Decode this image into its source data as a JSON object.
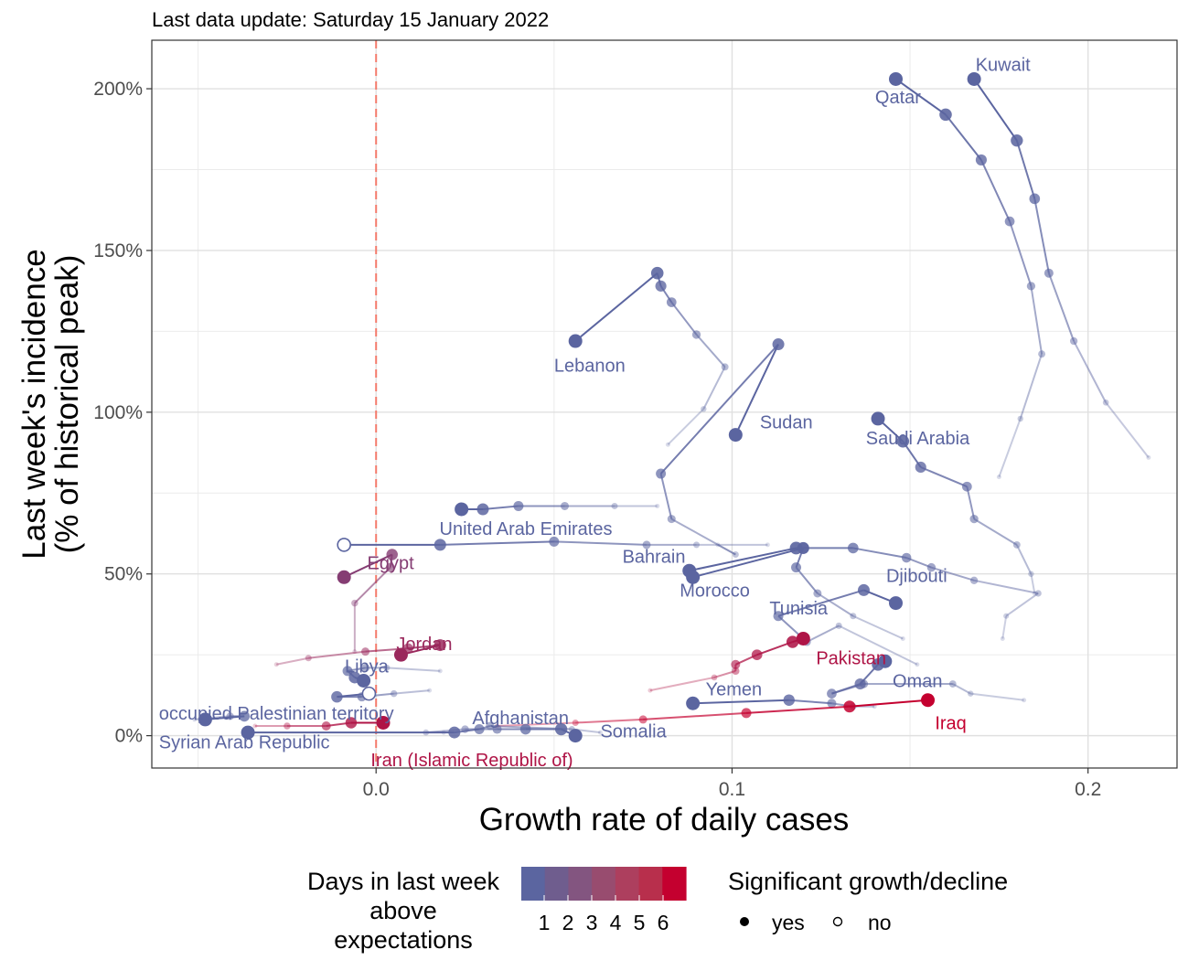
{
  "subtitle": "Last data update: Saturday 15 January 2022",
  "chart_data": {
    "type": "scatter",
    "xlabel": "Growth rate of daily cases",
    "ylabel_lines": [
      "Last week's incidence",
      "(% of historical peak)"
    ],
    "xlim": [
      -0.063,
      0.225
    ],
    "ylim": [
      -10,
      215
    ],
    "x_ticks": [
      {
        "v": 0,
        "label": "0.0"
      },
      {
        "v": 0.1,
        "label": "0.1"
      },
      {
        "v": 0.2,
        "label": "0.2"
      }
    ],
    "y_ticks": [
      {
        "v": 0,
        "label": "0%"
      },
      {
        "v": 50,
        "label": "50%"
      },
      {
        "v": 100,
        "label": "100%"
      },
      {
        "v": 150,
        "label": "150%"
      },
      {
        "v": 200,
        "label": "200%"
      }
    ],
    "grid": true,
    "reference_line_x": 0,
    "colors": {
      "low": "#5b65a0",
      "high": "#c4002f",
      "refline": "#f47a6b",
      "scale": [
        "#5b65a0",
        "#6f5d8e",
        "#835580",
        "#984c6f",
        "#ad3f5e",
        "#b82f4c",
        "#c4002f"
      ]
    },
    "legend": {
      "placement": "bottom",
      "color_title_lines": [
        "Days in last week",
        "above",
        "expectations"
      ],
      "color_labels": [
        "1",
        "2",
        "3",
        "4",
        "5",
        "6"
      ],
      "shape_title": "Significant growth/decline",
      "shape_labels": [
        "yes",
        "no"
      ]
    },
    "series": [
      {
        "name": "Kuwait",
        "level": 1,
        "significant": true,
        "points": [
          [
            0.217,
            86
          ],
          [
            0.205,
            103
          ],
          [
            0.196,
            122
          ],
          [
            0.189,
            143
          ],
          [
            0.185,
            166
          ],
          [
            0.18,
            184
          ],
          [
            0.168,
            203
          ]
        ],
        "label": {
          "x": 0.1684,
          "y": 207.5
        }
      },
      {
        "name": "Qatar",
        "level": 1,
        "significant": true,
        "points": [
          [
            0.175,
            80
          ],
          [
            0.181,
            98
          ],
          [
            0.187,
            118
          ],
          [
            0.184,
            139
          ],
          [
            0.178,
            159
          ],
          [
            0.17,
            178
          ],
          [
            0.16,
            192
          ],
          [
            0.146,
            203
          ]
        ],
        "label": {
          "x": 0.1402,
          "y": 197.5
        }
      },
      {
        "name": "Lebanon",
        "level": 1,
        "significant": true,
        "points": [
          [
            0.082,
            90
          ],
          [
            0.092,
            101
          ],
          [
            0.098,
            114
          ],
          [
            0.09,
            124
          ],
          [
            0.083,
            134
          ],
          [
            0.08,
            139
          ],
          [
            0.079,
            143
          ],
          [
            0.056,
            122
          ]
        ],
        "label": {
          "x": 0.05,
          "y": 114.5
        }
      },
      {
        "name": "Sudan",
        "level": 1,
        "significant": true,
        "points": [
          [
            0.096,
            59
          ],
          [
            0.101,
            56
          ],
          [
            0.083,
            67
          ],
          [
            0.08,
            81
          ],
          [
            0.113,
            121
          ],
          [
            0.101,
            93
          ]
        ],
        "label": {
          "x": 0.1078,
          "y": 97
        }
      },
      {
        "name": "Saudi Arabia",
        "level": 1,
        "significant": true,
        "points": [
          [
            0.185,
            44
          ],
          [
            0.184,
            50
          ],
          [
            0.18,
            59
          ],
          [
            0.168,
            67
          ],
          [
            0.166,
            77
          ],
          [
            0.153,
            83
          ],
          [
            0.148,
            91
          ],
          [
            0.141,
            98
          ]
        ],
        "label": {
          "x": 0.1376,
          "y": 92
        }
      },
      {
        "name": "United Arab Emirates",
        "level": 1,
        "significant": false,
        "points": [
          [
            0.11,
            59
          ],
          [
            0.09,
            59
          ],
          [
            0.076,
            59
          ],
          [
            0.05,
            60
          ],
          [
            0.018,
            59
          ],
          [
            -0.009,
            59
          ]
        ],
        "label": {
          "x": 0.0178,
          "y": 64
        }
      },
      {
        "name": "Bahrain",
        "level": 1,
        "significant": true,
        "points": [
          [
            0.079,
            71
          ],
          [
            0.067,
            71
          ],
          [
            0.053,
            71
          ],
          [
            0.04,
            71
          ],
          [
            0.03,
            70
          ],
          [
            0.024,
            70
          ]
        ],
        "label": {
          "x": 0.0692,
          "y": 55.5
        }
      },
      {
        "name": "Morocco",
        "level": 1,
        "significant": true,
        "points": [
          [
            0.176,
            30
          ],
          [
            0.177,
            37
          ],
          [
            0.186,
            44
          ],
          [
            0.168,
            48
          ],
          [
            0.156,
            52
          ],
          [
            0.149,
            55
          ],
          [
            0.134,
            58
          ],
          [
            0.12,
            58
          ],
          [
            0.118,
            58
          ],
          [
            0.088,
            51
          ]
        ],
        "label": {
          "x": 0.0853,
          "y": 45
        }
      },
      {
        "name": "Djibouti",
        "level": 1,
        "significant": true,
        "points": [
          [
            0.148,
            30
          ],
          [
            0.134,
            37
          ],
          [
            0.124,
            44
          ],
          [
            0.118,
            52
          ],
          [
            0.12,
            58
          ],
          [
            0.089,
            49
          ]
        ],
        "label": {
          "x": 0.1433,
          "y": 49.5
        }
      },
      {
        "name": "Tunisia",
        "level": 1,
        "significant": true,
        "points": [
          [
            0.152,
            22
          ],
          [
            0.13,
            34
          ],
          [
            0.121,
            29
          ],
          [
            0.113,
            37
          ],
          [
            0.137,
            45
          ],
          [
            0.146,
            41
          ]
        ],
        "label": {
          "x": 0.1105,
          "y": 39.5
        }
      },
      {
        "name": "Egypt",
        "level": 3,
        "significant": true,
        "points": [
          [
            -0.006,
            26
          ],
          [
            -0.006,
            41
          ],
          [
            0.004,
            52
          ],
          [
            0.0045,
            56
          ],
          [
            -0.009,
            49
          ]
        ],
        "label": {
          "x": -0.0025,
          "y": 53.5
        }
      },
      {
        "name": "Jordan",
        "level": 4,
        "significant": true,
        "points": [
          [
            -0.028,
            22
          ],
          [
            -0.019,
            24
          ],
          [
            -0.003,
            26
          ],
          [
            0.009,
            27
          ],
          [
            0.018,
            28
          ],
          [
            0.007,
            25
          ]
        ],
        "label": {
          "x": 0.0057,
          "y": 28.5
        }
      },
      {
        "name": "Libya",
        "level": 1,
        "significant": true,
        "points": [
          [
            0.018,
            20
          ],
          [
            0.003,
            21
          ],
          [
            -0.003,
            21
          ],
          [
            -0.008,
            20
          ],
          [
            -0.006,
            18
          ],
          [
            -0.0035,
            17
          ]
        ],
        "label": {
          "x": -0.0088,
          "y": 21.5
        }
      },
      {
        "name": "Pakistan",
        "level": 5,
        "significant": true,
        "points": [
          [
            0.077,
            14
          ],
          [
            0.095,
            18
          ],
          [
            0.101,
            20
          ],
          [
            0.101,
            22
          ],
          [
            0.107,
            25
          ],
          [
            0.117,
            29
          ],
          [
            0.12,
            30
          ]
        ],
        "label": {
          "x": 0.1236,
          "y": 24
        }
      },
      {
        "name": "Oman",
        "level": 1,
        "significant": true,
        "points": [
          [
            0.182,
            11
          ],
          [
            0.167,
            13
          ],
          [
            0.162,
            16
          ],
          [
            0.137,
            16
          ],
          [
            0.128,
            13
          ],
          [
            0.136,
            16
          ],
          [
            0.141,
            22
          ],
          [
            0.143,
            23
          ]
        ],
        "label": {
          "x": 0.1451,
          "y": 17
        }
      },
      {
        "name": "Yemen",
        "level": 1,
        "significant": true,
        "points": [
          [
            0.14,
            9
          ],
          [
            0.134,
            9
          ],
          [
            0.128,
            10
          ],
          [
            0.116,
            11
          ],
          [
            0.089,
            10
          ]
        ],
        "label": {
          "x": 0.0926,
          "y": 14.5
        }
      },
      {
        "name": "occupied Palestinian territory",
        "level": 1,
        "significant": true,
        "points": [
          [
            -0.051,
            5
          ],
          [
            -0.041,
            6
          ],
          [
            -0.037,
            6
          ],
          [
            -0.048,
            5
          ]
        ],
        "label": {
          "x": -0.061,
          "y": 7
        }
      },
      {
        "name": "Syrian Arab Republic",
        "level": 1,
        "significant": false,
        "points": [
          [
            0.015,
            14
          ],
          [
            0.005,
            13
          ],
          [
            -0.004,
            12
          ],
          [
            -0.011,
            12
          ],
          [
            -0.002,
            13
          ]
        ],
        "label": {
          "x": -0.061,
          "y": -2
        }
      },
      {
        "name": "Iraq",
        "level": 6,
        "significant": true,
        "points": [
          [
            0.034,
            3
          ],
          [
            0.056,
            4
          ],
          [
            0.075,
            5
          ],
          [
            0.104,
            7
          ],
          [
            0.133,
            9
          ],
          [
            0.155,
            11
          ]
        ],
        "label": {
          "x": 0.157,
          "y": 4
        }
      },
      {
        "name": "Iran (Islamic Republic of)",
        "level": 5,
        "significant": true,
        "points": [
          [
            -0.034,
            3
          ],
          [
            -0.025,
            3
          ],
          [
            -0.014,
            3
          ],
          [
            -0.007,
            4
          ],
          [
            0.002,
            4
          ]
        ],
        "label": {
          "x": -0.0015,
          "y": -7.5
        }
      },
      {
        "name": "Afghanistan",
        "level": 1,
        "significant": true,
        "points": [
          [
            0.063,
            1
          ],
          [
            0.055,
            2
          ],
          [
            0.032,
            3
          ],
          [
            0.029,
            2
          ],
          [
            0.022,
            1
          ],
          [
            -0.036,
            1
          ]
        ],
        "label": {
          "x": 0.027,
          "y": 5.5
        }
      },
      {
        "name": "Somalia",
        "level": 1,
        "significant": true,
        "points": [
          [
            0.019,
            1
          ],
          [
            0.014,
            1
          ],
          [
            0.025,
            2
          ],
          [
            0.034,
            2
          ],
          [
            0.042,
            2
          ],
          [
            0.052,
            2
          ],
          [
            0.056,
            0
          ]
        ],
        "label": {
          "x": 0.063,
          "y": 1.5
        }
      }
    ]
  }
}
